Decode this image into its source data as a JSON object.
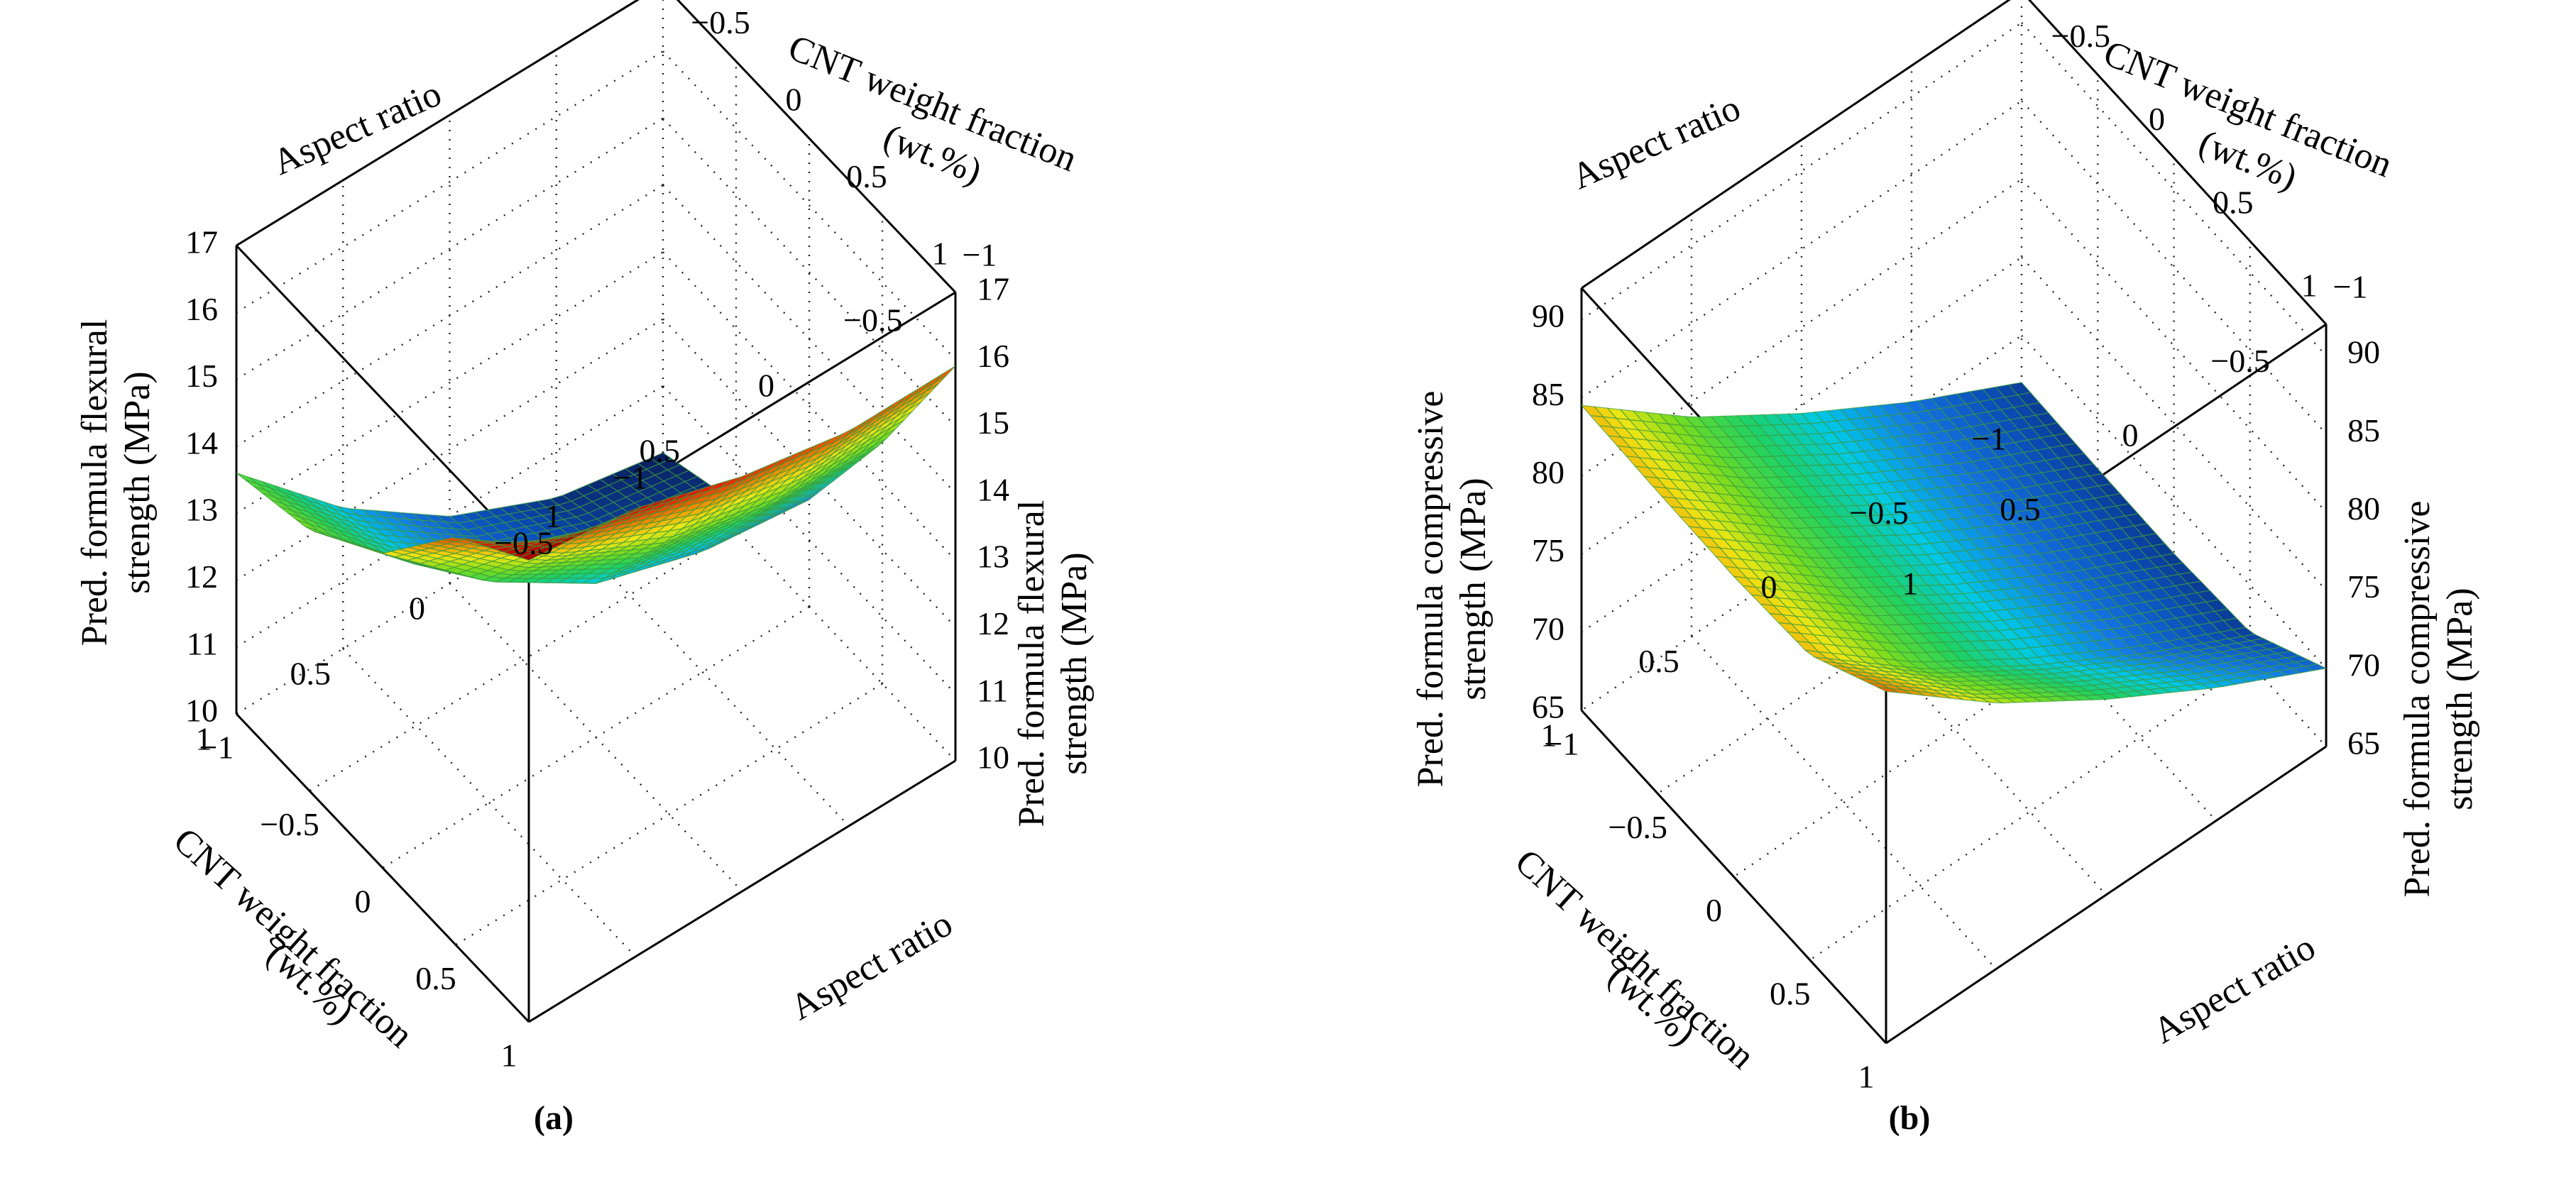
{
  "chart_data": [
    {
      "id": "a",
      "type": "surface3d",
      "panel_label": "(a)",
      "xlabel": "Aspect ratio",
      "ylabel_lines": [
        "CNT weight fraction",
        "(wt.%)"
      ],
      "zlabel_left_lines": [
        "Pred. formula flexural",
        "strength (MPa)"
      ],
      "zlabel_right_lines": [
        "Pred. formula flexural",
        "strength (MPa)"
      ],
      "x_ticks": [
        "−1",
        "−0.5",
        "0",
        "0.5",
        "1"
      ],
      "y_ticks": [
        "−1",
        "−0.5",
        "0",
        "0.5",
        "1"
      ],
      "z_ticks": [
        "10",
        "11",
        "12",
        "13",
        "14",
        "15",
        "16",
        "17"
      ],
      "xlim": [
        -1,
        1
      ],
      "ylim": [
        -1,
        1
      ],
      "zlim": [
        10,
        17
      ],
      "grid": true,
      "surface": {
        "x": [
          -1,
          -0.5,
          0,
          0.5,
          1
        ],
        "y": [
          -1,
          -0.5,
          0,
          0.5,
          1
        ],
        "z": [
          [
            10.0,
            10.4,
            11.6,
            13.6,
            15.9
          ],
          [
            10.3,
            10.7,
            11.8,
            13.7,
            15.9
          ],
          [
            11.0,
            11.3,
            12.3,
            14.1,
            16.2
          ],
          [
            12.1,
            12.4,
            13.3,
            14.9,
            16.7
          ],
          [
            13.6,
            13.9,
            14.7,
            16.1,
            16.9
          ]
        ]
      },
      "colormap": [
        "#0a1e5a",
        "#0a4bb4",
        "#1478e6",
        "#00c8e6",
        "#1ed264",
        "#78dc1e",
        "#f0e614",
        "#f08c00",
        "#e61e00",
        "#960000"
      ]
    },
    {
      "id": "b",
      "type": "surface3d",
      "panel_label": "(b)",
      "xlabel": "Aspect ratio",
      "ylabel_lines": [
        "CNT weight fraction",
        "(wt.%)"
      ],
      "zlabel_left_lines": [
        "Pred. formula compressive",
        "strength (MPa)"
      ],
      "zlabel_right_lines": [
        "Pred. formula compressive",
        "strength (MPa)"
      ],
      "x_ticks": [
        "−1",
        "−0.5",
        "0",
        "0.5",
        "1"
      ],
      "y_ticks": [
        "−1",
        "−0.5",
        "0",
        "0.5",
        "1"
      ],
      "z_ticks": [
        "65",
        "70",
        "75",
        "80",
        "85",
        "90"
      ],
      "xlim": [
        -1,
        1
      ],
      "ylim": [
        -1,
        1
      ],
      "zlim": [
        65,
        92
      ],
      "grid": true,
      "surface": {
        "x": [
          -1,
          -0.5,
          0,
          0.5,
          1
        ],
        "y": [
          -1,
          -0.5,
          0,
          0.5,
          1
        ],
        "z": [
          [
            67.0,
            66.8,
            66.7,
            67.0,
            70.0
          ],
          [
            70.5,
            70.3,
            70.2,
            70.5,
            73.5
          ],
          [
            74.5,
            74.3,
            74.2,
            74.5,
            77.5
          ],
          [
            79.0,
            78.8,
            78.7,
            79.0,
            82.0
          ],
          [
            84.5,
            84.3,
            84.2,
            84.5,
            87.5
          ]
        ]
      },
      "colormap": [
        "#0a1e5a",
        "#0a4bb4",
        "#1478e6",
        "#00c8e6",
        "#1ed264",
        "#78dc1e",
        "#f0e614",
        "#f08c00",
        "#e61e00",
        "#960000"
      ]
    }
  ]
}
